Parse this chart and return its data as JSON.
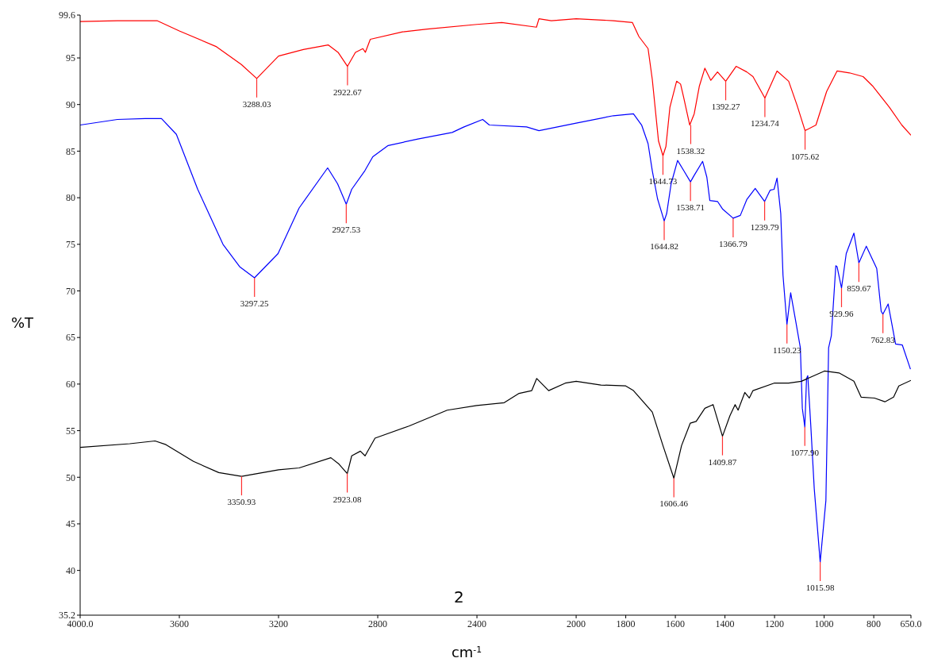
{
  "chart_data": {
    "type": "line",
    "xlabel": "cm$^{-1}$",
    "ylabel": "%T",
    "xlim": [
      4000,
      650
    ],
    "xticks": [
      {
        "value": 4000,
        "label": "4000.0"
      },
      3600,
      3200,
      2800,
      2400,
      2000,
      1800,
      1600,
      1400,
      1200,
      1000,
      800,
      {
        "value": 650,
        "label": "650.0"
      }
    ],
    "ylim": [
      35.2,
      99.6
    ],
    "yticks": [
      35.2,
      40,
      45,
      50,
      55,
      60,
      65,
      70,
      75,
      80,
      85,
      90,
      95,
      99.6
    ],
    "grid": false,
    "marker": "none",
    "line_style": "solid",
    "series": [
      {
        "color": "#ff0000",
        "x": [
          4000,
          3850,
          3690,
          3600,
          3450,
          3350,
          3288,
          3200,
          3100,
          3000,
          2960,
          2922,
          2890,
          2860,
          2850,
          2830,
          2700,
          2600,
          2400,
          2300,
          2160,
          2150,
          2100,
          2000,
          1850,
          1773,
          1747,
          1710,
          1693,
          1668,
          1650,
          1638,
          1622,
          1595,
          1579,
          1566,
          1542,
          1524,
          1503,
          1481,
          1457,
          1430,
          1397,
          1355,
          1312,
          1287,
          1239,
          1190,
          1143,
          1109,
          1077,
          1033,
          990,
          948,
          898,
          843,
          805,
          737,
          687,
          650
        ],
        "values": [
          98.9,
          99.0,
          99.0,
          97.9,
          96.2,
          94.3,
          92.8,
          95.2,
          95.9,
          96.4,
          95.6,
          94.1,
          95.6,
          96.0,
          95.6,
          97.0,
          97.8,
          98.1,
          98.6,
          98.8,
          98.3,
          99.2,
          99.0,
          99.2,
          99.0,
          98.8,
          97.3,
          96.0,
          92.7,
          86.1,
          84.5,
          85.5,
          89.7,
          92.5,
          92.2,
          90.7,
          87.8,
          89.0,
          92.0,
          93.9,
          92.6,
          93.5,
          92.5,
          94.1,
          93.5,
          93.0,
          90.7,
          93.6,
          92.5,
          89.9,
          87.2,
          87.8,
          91.4,
          93.6,
          93.4,
          93.0,
          92.0,
          89.7,
          87.8,
          86.7
        ]
      },
      {
        "color": "#0000ff",
        "x": [
          4000,
          3850,
          3738,
          3672,
          3612,
          3526,
          3424,
          3357,
          3297,
          3202,
          3117,
          3002,
          2962,
          2927,
          2905,
          2852,
          2820,
          2758,
          2638,
          2500,
          2452,
          2377,
          2350,
          2200,
          2150,
          2000,
          1850,
          1769,
          1736,
          1710,
          1693,
          1672,
          1645,
          1635,
          1617,
          1591,
          1566,
          1539,
          1524,
          1490,
          1473,
          1461,
          1430,
          1410,
          1367,
          1338,
          1312,
          1278,
          1240,
          1218,
          1202,
          1190,
          1175,
          1166,
          1150,
          1135,
          1113,
          1096,
          1088,
          1078,
          1071,
          1066,
          1054,
          1040,
          1016,
          993,
          982,
          971,
          953,
          948,
          930,
          911,
          880,
          860,
          830,
          788,
          770,
          763,
          742,
          712,
          685,
          652
        ],
        "values": [
          87.8,
          88.4,
          88.5,
          88.5,
          86.8,
          80.9,
          75.0,
          72.6,
          71.4,
          74.0,
          78.9,
          83.2,
          81.5,
          79.3,
          80.9,
          82.9,
          84.4,
          85.6,
          86.3,
          87.0,
          87.6,
          88.4,
          87.8,
          87.6,
          87.2,
          88.0,
          88.8,
          89.0,
          87.8,
          85.8,
          82.9,
          79.9,
          77.5,
          78.3,
          81.5,
          84.0,
          82.9,
          81.7,
          82.4,
          83.9,
          82.2,
          79.7,
          79.6,
          78.8,
          77.8,
          78.1,
          79.8,
          81.0,
          79.6,
          80.8,
          80.9,
          82.1,
          78.3,
          71.7,
          66.4,
          69.8,
          66.5,
          63.9,
          57.4,
          55.4,
          60.6,
          60.9,
          55.6,
          48.8,
          40.9,
          47.5,
          63.9,
          65.2,
          72.7,
          72.6,
          70.3,
          74.0,
          76.2,
          73.0,
          74.8,
          72.4,
          67.8,
          67.5,
          68.6,
          64.3,
          64.2,
          61.6
        ]
      },
      {
        "color": "#000000",
        "x": [
          4000,
          3800,
          3698,
          3654,
          3543,
          3441,
          3349,
          3200,
          3117,
          2989,
          2956,
          2923,
          2905,
          2870,
          2851,
          2811,
          2674,
          2520,
          2401,
          2290,
          2230,
          2179,
          2159,
          2111,
          2044,
          2000,
          1900,
          1800,
          1769,
          1693,
          1650,
          1606,
          1575,
          1540,
          1516,
          1481,
          1448,
          1410,
          1380,
          1359,
          1347,
          1320,
          1302,
          1287,
          1202,
          1143,
          1092,
          999,
          940,
          880,
          851,
          797,
          755,
          720,
          699,
          650
        ],
        "values": [
          53.2,
          53.6,
          53.9,
          53.5,
          51.7,
          50.5,
          50.1,
          50.8,
          51.0,
          52.1,
          51.4,
          50.4,
          52.3,
          52.8,
          52.3,
          54.2,
          55.5,
          57.2,
          57.7,
          58.0,
          59.0,
          59.3,
          60.6,
          59.3,
          60.1,
          60.3,
          59.9,
          59.8,
          59.3,
          57.0,
          53.4,
          49.9,
          53.4,
          55.8,
          56.0,
          57.4,
          57.8,
          54.4,
          56.6,
          57.8,
          57.2,
          59.1,
          58.5,
          59.3,
          60.1,
          60.1,
          60.3,
          61.4,
          61.2,
          60.3,
          58.6,
          58.5,
          58.1,
          58.6,
          59.8,
          60.4
        ]
      }
    ],
    "annotations": [
      {
        "text": "3288.03",
        "x": 3288,
        "y": 92.8
      },
      {
        "text": "2922.67",
        "x": 2922,
        "y": 94.1
      },
      {
        "text": "1644.73",
        "x": 1650,
        "y": 84.5
      },
      {
        "text": "1538.32",
        "x": 1538,
        "y": 87.8
      },
      {
        "text": "1392.27",
        "x": 1397,
        "y": 92.5
      },
      {
        "text": "1234.74",
        "x": 1239,
        "y": 90.7
      },
      {
        "text": "1075.62",
        "x": 1077,
        "y": 87.2
      },
      {
        "text": "3297.25",
        "x": 3297,
        "y": 71.4
      },
      {
        "text": "2927.53",
        "x": 2927,
        "y": 79.3
      },
      {
        "text": "1644.82",
        "x": 1645,
        "y": 77.5
      },
      {
        "text": "1538.71",
        "x": 1539,
        "y": 81.7
      },
      {
        "text": "1366.79",
        "x": 1367,
        "y": 77.8
      },
      {
        "text": "1239.79",
        "x": 1240,
        "y": 79.6
      },
      {
        "text": "1150.23",
        "x": 1150,
        "y": 66.4
      },
      {
        "text": "1077.90",
        "x": 1078,
        "y": 55.4
      },
      {
        "text": "1015.98",
        "x": 1016,
        "y": 40.9
      },
      {
        "text": "929.96",
        "x": 930,
        "y": 70.3
      },
      {
        "text": "859.67",
        "x": 860,
        "y": 73.0
      },
      {
        "text": "762.83",
        "x": 763,
        "y": 67.5
      },
      {
        "text": "3350.93",
        "x": 3349,
        "y": 50.1
      },
      {
        "text": "2923.08",
        "x": 2923,
        "y": 50.4
      },
      {
        "text": "1606.46",
        "x": 1606,
        "y": 49.9
      },
      {
        "text": "1409.87",
        "x": 1410,
        "y": 54.4
      },
      "2"
    ]
  }
}
